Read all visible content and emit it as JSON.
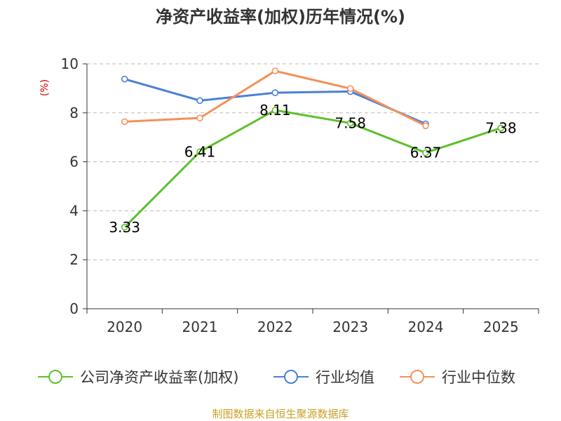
{
  "chart_data": {
    "type": "line",
    "title": "净资产收益率(加权)历年情况(%)",
    "ylabel": "(%)",
    "categories": [
      "2020",
      "2021",
      "2022",
      "2023",
      "2024",
      "2025"
    ],
    "ylim": [
      0,
      10
    ],
    "yticks": [
      "0",
      "2",
      "4",
      "6",
      "8",
      "10"
    ],
    "grid": true,
    "legend_position": "bottom",
    "series": [
      {
        "name": "公司净资产收益率(加权)",
        "color": "#5dc02c",
        "values": [
          3.33,
          6.41,
          8.11,
          7.58,
          6.37,
          7.38
        ],
        "labels": [
          "3.33",
          "6.41",
          "8.11",
          "7.58",
          "6.37",
          "7.38"
        ]
      },
      {
        "name": "行业均值",
        "color": "#4a7fd8",
        "values": [
          9.38,
          8.5,
          8.82,
          8.87,
          7.55,
          null
        ]
      },
      {
        "name": "行业中位数",
        "color": "#f5905a",
        "values": [
          7.64,
          7.79,
          9.71,
          8.99,
          7.47,
          null
        ]
      }
    ],
    "source": "制图数据来自恒生聚源数据库"
  },
  "colors": {
    "axis": "#333333",
    "grid": "#bbbbbb",
    "unit": "#d40000",
    "source": "#c9a227"
  }
}
